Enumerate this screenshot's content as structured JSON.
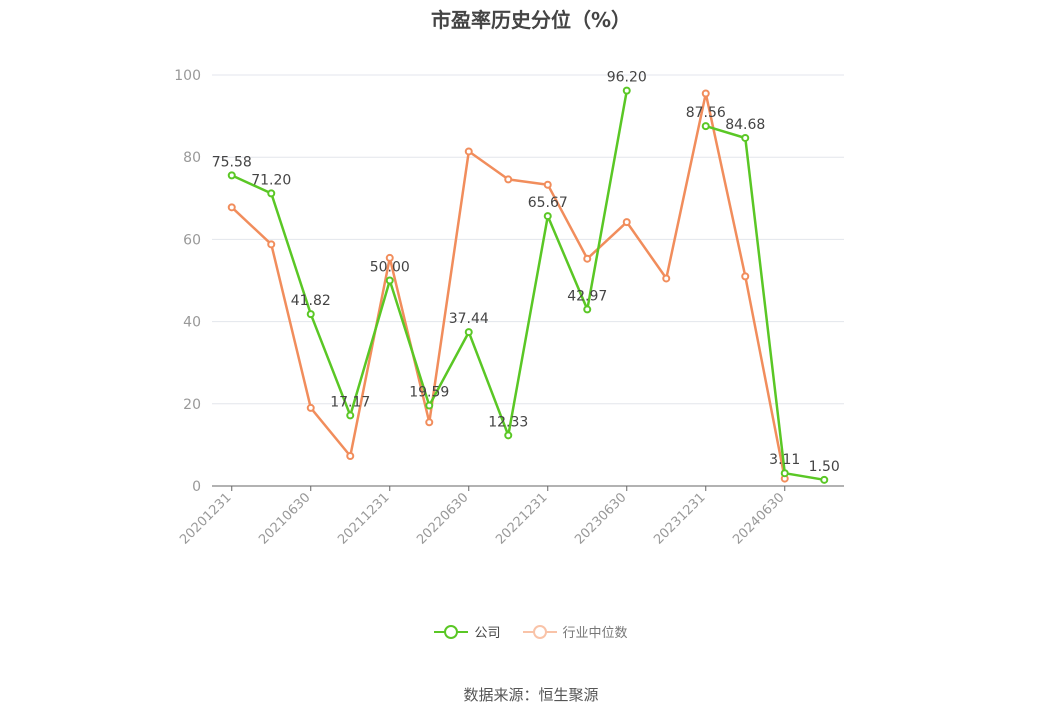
{
  "chart_data": {
    "type": "line",
    "title": "市盈率历史分位（%）",
    "x": [
      "20201231",
      "20210331",
      "20210630",
      "20210930",
      "20211231",
      "20220331",
      "20220630",
      "20220930",
      "20221231",
      "20230331",
      "20230630",
      "20230930",
      "20231231",
      "20240331",
      "20240630",
      "20240930"
    ],
    "x_tick_labels": [
      "20201231",
      "20210630",
      "20211231",
      "20220630",
      "20221231",
      "20230630",
      "20231231",
      "20240630"
    ],
    "ylim": [
      0,
      100
    ],
    "yticks": [
      0,
      20,
      40,
      60,
      80,
      100
    ],
    "grid": true,
    "legend_position": "bottom",
    "series": [
      {
        "name": "公司",
        "color": "#5ac725",
        "values": [
          75.58,
          71.2,
          41.82,
          17.17,
          50.0,
          19.59,
          37.44,
          12.33,
          65.67,
          42.97,
          96.2,
          null,
          87.56,
          84.68,
          3.11,
          1.5
        ],
        "labels": [
          "75.58",
          "71.20",
          "41.82",
          "17.17",
          "50.00",
          "19.59",
          "37.44",
          "12.33",
          "65.67",
          "42.97",
          "96.20",
          "",
          "87.56",
          "84.68",
          "3.11",
          "1.50"
        ]
      },
      {
        "name": "行业中位数",
        "color": "#f18d5c",
        "values": [
          67.8,
          58.8,
          19.0,
          7.3,
          55.5,
          15.5,
          81.4,
          74.6,
          73.3,
          55.3,
          64.2,
          50.5,
          95.5,
          51.0,
          1.8,
          null
        ]
      }
    ]
  },
  "source": "数据来源：恒生聚源"
}
